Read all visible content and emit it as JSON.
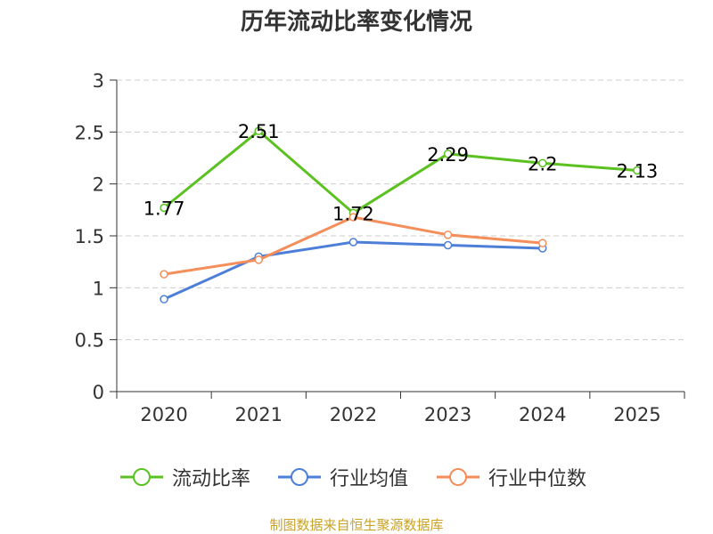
{
  "chart_data": {
    "type": "line",
    "title": "历年流动比率变化情况",
    "categories": [
      "2020",
      "2021",
      "2022",
      "2023",
      "2024",
      "2025"
    ],
    "ylim": [
      0,
      3
    ],
    "yticks": [
      0,
      0.5,
      1,
      1.5,
      2,
      2.5,
      3
    ],
    "ytick_labels": [
      "0",
      "0.5",
      "1",
      "1.5",
      "2",
      "2.5",
      "3"
    ],
    "grid": true,
    "legend_position": "bottom",
    "series": [
      {
        "name": "流动比率",
        "color": "#5bc121",
        "values": [
          1.77,
          2.51,
          1.72,
          2.29,
          2.2,
          2.13
        ],
        "labels": [
          "1.77",
          "2.51",
          "1.72",
          "2.29",
          "2.2",
          "2.13"
        ],
        "show_labels": true
      },
      {
        "name": "行业均值",
        "color": "#4e7fd8",
        "values": [
          0.89,
          1.3,
          1.44,
          1.41,
          1.38,
          null
        ],
        "show_labels": false
      },
      {
        "name": "行业中位数",
        "color": "#f48e5b",
        "values": [
          1.13,
          1.27,
          1.68,
          1.51,
          1.43,
          null
        ],
        "show_labels": false
      }
    ]
  },
  "footer": {
    "source": "制图数据来自恒生聚源数据库"
  }
}
